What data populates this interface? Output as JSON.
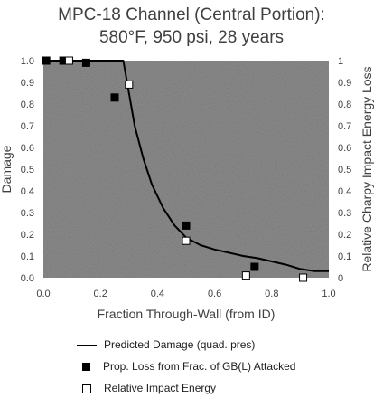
{
  "chart_data": {
    "type": "scatter",
    "title": "MPC-18 Channel (Central Portion):",
    "subtitle": "580°F, 950 psi, 28 years",
    "xlabel": "Fraction Through-Wall (from ID)",
    "ylabel": "Damage",
    "y2label": "Relative Charpy Impact Energy Loss",
    "xlim": [
      0,
      1
    ],
    "ylim": [
      0,
      1
    ],
    "y2lim": [
      0,
      1
    ],
    "x_ticks": [
      "0.0",
      "0.2",
      "0.4",
      "0.6",
      "0.8",
      "1.0"
    ],
    "y_ticks": [
      "0.0",
      "0.1",
      "0.2",
      "0.3",
      "0.4",
      "0.5",
      "0.6",
      "0.7",
      "0.8",
      "0.9",
      "1.0"
    ],
    "y2_ticks": [
      "0",
      "0.1",
      "0.2",
      "0.3",
      "0.4",
      "0.5",
      "0.6",
      "0.7",
      "0.8",
      "0.9",
      "1"
    ],
    "grid": false,
    "legend_position": "bottom",
    "background": "#8c8c8c",
    "series": [
      {
        "name": "Predicted Damage (quad. pres)",
        "kind": "line",
        "color": "#000000",
        "x": [
          0.0,
          0.05,
          0.1,
          0.15,
          0.2,
          0.25,
          0.28,
          0.3,
          0.32,
          0.35,
          0.38,
          0.42,
          0.46,
          0.5,
          0.55,
          0.6,
          0.65,
          0.7,
          0.75,
          0.8,
          0.85,
          0.9,
          0.95,
          1.0
        ],
        "y": [
          1.0,
          1.0,
          1.0,
          1.0,
          1.0,
          1.0,
          1.0,
          0.85,
          0.7,
          0.55,
          0.43,
          0.32,
          0.24,
          0.185,
          0.15,
          0.13,
          0.115,
          0.1,
          0.09,
          0.075,
          0.06,
          0.04,
          0.03,
          0.03
        ]
      },
      {
        "name": "Prop. Loss from Frac. of GB(L) Attacked",
        "kind": "filled-square",
        "color": "#000000",
        "x": [
          0.01,
          0.07,
          0.15,
          0.25,
          0.5,
          0.74
        ],
        "y": [
          1.0,
          1.0,
          0.99,
          0.83,
          0.24,
          0.05
        ]
      },
      {
        "name": "Relative Impact Energy",
        "kind": "open-square",
        "color": "#000000",
        "x": [
          0.09,
          0.3,
          0.5,
          0.71,
          0.91
        ],
        "y": [
          1.0,
          0.89,
          0.17,
          0.01,
          0.0
        ]
      }
    ]
  }
}
